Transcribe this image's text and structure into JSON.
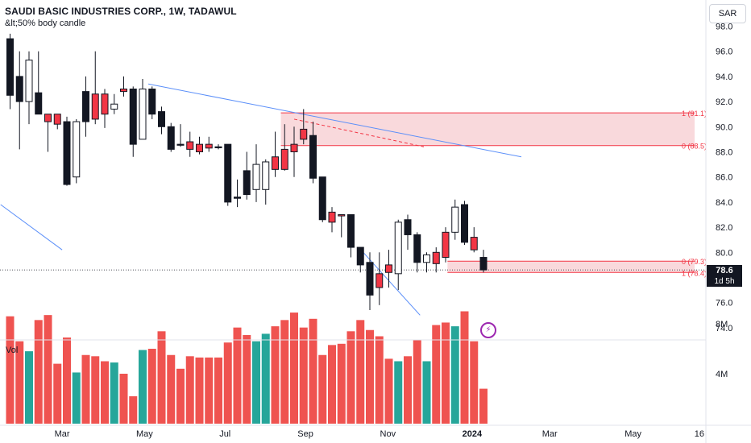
{
  "header": {
    "title": "SAUDI BASIC INDUSTRIES CORP., 1W, TADAWUL",
    "subtitle": "&lt;50% body candle",
    "currency_button": "SAR"
  },
  "volume_label": "Vol",
  "price_tag": "78.6",
  "countdown_tag": "1d 5h",
  "colors": {
    "up": "#ffffff",
    "down_body": "#131722",
    "highlight": "#f23645",
    "vol_up": "#26a69a",
    "vol_down": "#ef5350",
    "zone": "#f8d2d6",
    "trendline": "#5b8ff9"
  },
  "chart_data": {
    "type": "candlestick",
    "price_axis": {
      "ticks": [
        98.0,
        96.0,
        94.0,
        92.0,
        90.0,
        88.0,
        86.0,
        84.0,
        82.0,
        80.0,
        78.0,
        76.0,
        74.0
      ],
      "tick_labels": [
        "98.0",
        "96.0",
        "94.0",
        "92.0",
        "90.0",
        "88.0",
        "86.0",
        "84.0",
        "82.0",
        "80.0",
        "78.0",
        "76.0",
        "74.0"
      ]
    },
    "volume_axis": {
      "ticks": [
        8,
        4
      ],
      "tick_labels": [
        "8M",
        "4M"
      ]
    },
    "time_axis": [
      {
        "label": "Mar",
        "week": 5.5
      },
      {
        "label": "May",
        "week": 14.2
      },
      {
        "label": "Jul",
        "week": 22.7
      },
      {
        "label": "Sep",
        "week": 31.2
      },
      {
        "label": "Nov",
        "week": 39.9
      },
      {
        "label": "2024",
        "week": 48.8
      },
      {
        "label": "Mar",
        "week": 57.0
      },
      {
        "label": "May",
        "week": 65.8
      },
      {
        "label": "16",
        "week": 72.8
      }
    ],
    "candles": [
      {
        "w": 0,
        "o": 97.0,
        "h": 97.4,
        "l": 91.4,
        "c": 92.5,
        "s": "down",
        "v": 8.6
      },
      {
        "w": 1,
        "o": 92.0,
        "h": 96.0,
        "l": 88.2,
        "c": 94.0,
        "s": "down",
        "v": 6.6
      },
      {
        "w": 2,
        "o": 95.3,
        "h": 96.0,
        "l": 90.2,
        "c": 92.0,
        "s": "up",
        "v": 5.8
      },
      {
        "w": 3,
        "o": 92.7,
        "h": 96.0,
        "l": 91.0,
        "c": 91.0,
        "s": "down",
        "v": 8.3
      },
      {
        "w": 4,
        "o": 91.0,
        "h": 91.0,
        "l": 88.0,
        "c": 90.4,
        "s": "highlight",
        "v": 8.7
      },
      {
        "w": 5,
        "o": 91.0,
        "h": 91.0,
        "l": 89.8,
        "c": 90.2,
        "s": "highlight",
        "v": 4.8
      },
      {
        "w": 6,
        "o": 90.4,
        "h": 90.8,
        "l": 85.3,
        "c": 85.4,
        "s": "down",
        "v": 6.9
      },
      {
        "w": 7,
        "o": 90.4,
        "h": 90.6,
        "l": 85.5,
        "c": 86.0,
        "s": "up",
        "v": 4.1
      },
      {
        "w": 8,
        "o": 92.8,
        "h": 94.0,
        "l": 89.2,
        "c": 90.4,
        "s": "down",
        "v": 5.5
      },
      {
        "w": 9,
        "o": 92.6,
        "h": 96.0,
        "l": 90.2,
        "c": 90.6,
        "s": "highlight",
        "v": 5.4
      },
      {
        "w": 10,
        "o": 91.0,
        "h": 93.0,
        "l": 89.9,
        "c": 92.6,
        "s": "highlight",
        "v": 5.0
      },
      {
        "w": 11,
        "o": 91.8,
        "h": 92.6,
        "l": 91.0,
        "c": 91.4,
        "s": "up",
        "v": 4.9
      },
      {
        "w": 12,
        "o": 93.0,
        "h": 94.0,
        "l": 92.4,
        "c": 92.8,
        "s": "highlight",
        "v": 4.0
      },
      {
        "w": 13,
        "o": 93.0,
        "h": 93.2,
        "l": 87.6,
        "c": 88.6,
        "s": "down",
        "v": 2.2
      },
      {
        "w": 14,
        "o": 89.0,
        "h": 93.8,
        "l": 89.0,
        "c": 93.0,
        "s": "up",
        "v": 5.9
      },
      {
        "w": 15,
        "o": 93.0,
        "h": 93.2,
        "l": 90.6,
        "c": 91.0,
        "s": "down",
        "v": 6.0
      },
      {
        "w": 16,
        "o": 91.2,
        "h": 91.6,
        "l": 89.4,
        "c": 90.0,
        "s": "down",
        "v": 7.4
      },
      {
        "w": 17,
        "o": 90.0,
        "h": 90.3,
        "l": 88.0,
        "c": 88.2,
        "s": "down",
        "v": 5.5
      },
      {
        "w": 18,
        "o": 88.6,
        "h": 90.2,
        "l": 88.4,
        "c": 88.6,
        "s": "down",
        "v": 4.4
      },
      {
        "w": 19,
        "o": 88.8,
        "h": 89.6,
        "l": 87.6,
        "c": 88.2,
        "s": "highlight",
        "v": 5.4
      },
      {
        "w": 20,
        "o": 88.6,
        "h": 89.2,
        "l": 87.8,
        "c": 88.0,
        "s": "highlight",
        "v": 5.3
      },
      {
        "w": 21,
        "o": 88.6,
        "h": 89.2,
        "l": 88.0,
        "c": 88.3,
        "s": "highlight",
        "v": 5.3
      },
      {
        "w": 22,
        "o": 88.4,
        "h": 88.6,
        "l": 88.2,
        "c": 88.4,
        "s": "down",
        "v": 5.3
      },
      {
        "w": 23,
        "o": 88.6,
        "h": 88.6,
        "l": 83.7,
        "c": 84.0,
        "s": "down",
        "v": 6.5
      },
      {
        "w": 24,
        "o": 84.3,
        "h": 85.8,
        "l": 83.6,
        "c": 84.4,
        "s": "down",
        "v": 7.7
      },
      {
        "w": 25,
        "o": 86.5,
        "h": 88.0,
        "l": 84.2,
        "c": 84.6,
        "s": "down",
        "v": 7.1
      },
      {
        "w": 26,
        "o": 85.0,
        "h": 88.6,
        "l": 84.0,
        "c": 87.0,
        "s": "up",
        "v": 6.6
      },
      {
        "w": 27,
        "o": 85.0,
        "h": 87.4,
        "l": 83.8,
        "c": 87.2,
        "s": "up",
        "v": 7.2
      },
      {
        "w": 28,
        "o": 86.6,
        "h": 89.6,
        "l": 86.0,
        "c": 87.6,
        "s": "highlight",
        "v": 7.8
      },
      {
        "w": 29,
        "o": 86.6,
        "h": 90.2,
        "l": 86.5,
        "c": 88.2,
        "s": "highlight",
        "v": 8.3
      },
      {
        "w": 30,
        "o": 88.0,
        "h": 90.0,
        "l": 86.0,
        "c": 88.6,
        "s": "highlight",
        "v": 8.9
      },
      {
        "w": 31,
        "o": 89.0,
        "h": 91.4,
        "l": 88.6,
        "c": 89.8,
        "s": "highlight",
        "v": 7.7
      },
      {
        "w": 32,
        "o": 89.3,
        "h": 90.4,
        "l": 85.5,
        "c": 85.9,
        "s": "down",
        "v": 8.4
      },
      {
        "w": 33,
        "o": 86.0,
        "h": 86.0,
        "l": 82.4,
        "c": 82.6,
        "s": "down",
        "v": 5.5
      },
      {
        "w": 34,
        "o": 83.2,
        "h": 83.6,
        "l": 81.6,
        "c": 82.4,
        "s": "highlight",
        "v": 6.3
      },
      {
        "w": 35,
        "o": 82.9,
        "h": 83.0,
        "l": 81.2,
        "c": 83.0,
        "s": "highlight",
        "v": 6.4
      },
      {
        "w": 36,
        "o": 83.0,
        "h": 83.0,
        "l": 79.6,
        "c": 80.4,
        "s": "down",
        "v": 7.4
      },
      {
        "w": 37,
        "o": 80.4,
        "h": 80.4,
        "l": 78.4,
        "c": 79.0,
        "s": "down",
        "v": 8.3
      },
      {
        "w": 38,
        "o": 79.2,
        "h": 80.0,
        "l": 75.4,
        "c": 76.6,
        "s": "down",
        "v": 7.5
      },
      {
        "w": 39,
        "o": 78.3,
        "h": 80.0,
        "l": 75.8,
        "c": 77.2,
        "s": "highlight",
        "v": 7.0
      },
      {
        "w": 40,
        "o": 78.4,
        "h": 80.2,
        "l": 77.2,
        "c": 79.0,
        "s": "highlight",
        "v": 5.2
      },
      {
        "w": 41,
        "o": 78.3,
        "h": 82.6,
        "l": 77.0,
        "c": 82.4,
        "s": "up",
        "v": 5.0
      },
      {
        "w": 42,
        "o": 82.6,
        "h": 83.0,
        "l": 80.2,
        "c": 81.4,
        "s": "down",
        "v": 5.4
      },
      {
        "w": 43,
        "o": 81.4,
        "h": 81.6,
        "l": 78.4,
        "c": 79.2,
        "s": "down",
        "v": 6.7
      },
      {
        "w": 44,
        "o": 79.2,
        "h": 80.0,
        "l": 78.4,
        "c": 79.8,
        "s": "up",
        "v": 5.0
      },
      {
        "w": 45,
        "o": 80.0,
        "h": 80.4,
        "l": 78.4,
        "c": 79.1,
        "s": "highlight",
        "v": 7.9
      },
      {
        "w": 46,
        "o": 79.6,
        "h": 82.0,
        "l": 79.2,
        "c": 81.6,
        "s": "highlight",
        "v": 8.1
      },
      {
        "w": 47,
        "o": 81.6,
        "h": 84.2,
        "l": 81.0,
        "c": 83.6,
        "s": "up",
        "v": 7.8
      },
      {
        "w": 48,
        "o": 83.8,
        "h": 84.1,
        "l": 80.6,
        "c": 80.8,
        "s": "down",
        "v": 9.0
      },
      {
        "w": 49,
        "o": 81.2,
        "h": 82.0,
        "l": 80.0,
        "c": 80.2,
        "s": "highlight",
        "v": 6.6
      },
      {
        "w": 50,
        "o": 79.6,
        "h": 80.2,
        "l": 78.4,
        "c": 78.6,
        "s": "down",
        "v": 2.8
      }
    ],
    "zones": [
      {
        "top": 91.1,
        "bottom": 88.5,
        "from_week": 28.6,
        "top_label": "1 (91.1)",
        "bottom_label": "0 (88.5)"
      },
      {
        "top": 79.3,
        "bottom": 78.4,
        "from_week": 46.2,
        "top_label": "0 (79.3)",
        "bottom_label": "1 (78.4)"
      }
    ],
    "trendlines": [
      {
        "x1": -1,
        "y1": 83.8,
        "x2": 5.5,
        "y2": 80.2
      },
      {
        "x1": 14.6,
        "y1": 93.4,
        "x2": 54.0,
        "y2": 87.6
      },
      {
        "x1": 37.3,
        "y1": 80.0,
        "x2": 43.3,
        "y2": 75.0
      }
    ],
    "dashed_line": {
      "x1": 30.0,
      "y1": 90.6,
      "x2": 43.7,
      "y2": 88.4
    },
    "last_price": 78.6
  }
}
